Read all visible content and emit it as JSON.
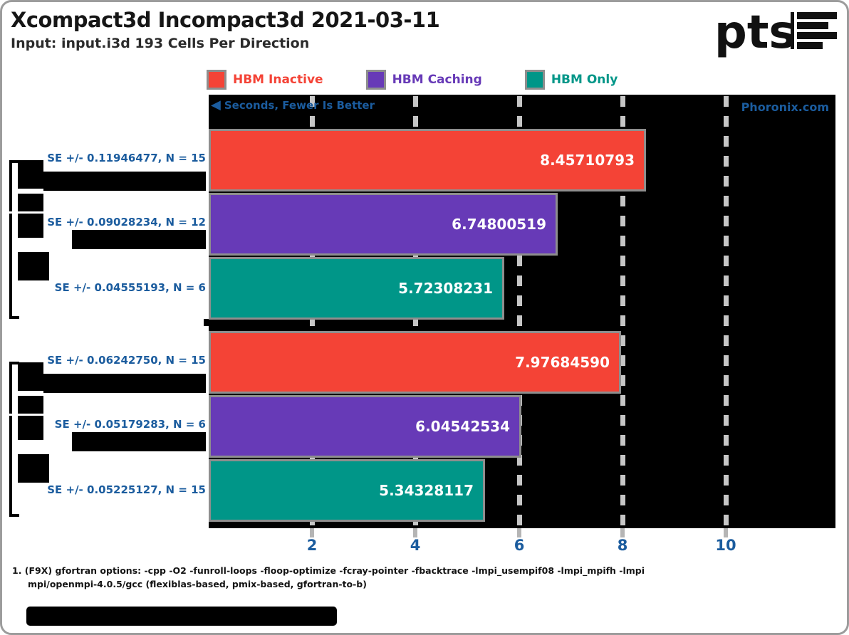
{
  "header": {
    "title": "Xcompact3d Incompact3d 2021-03-11",
    "subtitle": "Input: input.i3d 193 Cells Per Direction",
    "logo_text": "pts"
  },
  "chart_data": {
    "type": "bar",
    "orientation": "horizontal",
    "title": "Xcompact3d Incompact3d 2021-03-11",
    "subtitle": "Input: input.i3d 193 Cells Per Direction",
    "value_unit": "Seconds",
    "note": "Seconds, Fewer Is Better",
    "watermark": "Phoronix.com",
    "xlim": [
      0,
      12
    ],
    "xticks": [
      2,
      4,
      6,
      8,
      10
    ],
    "grid": "dashed-vertical",
    "legend_position": "top",
    "legend": [
      {
        "label": "HBM Inactive",
        "color": "#f44336"
      },
      {
        "label": "HBM Caching",
        "color": "#673ab7"
      },
      {
        "label": "HBM Only",
        "color": "#009688"
      }
    ],
    "bars": [
      {
        "group": 1,
        "series": "HBM Inactive",
        "value": 8.45710793,
        "label": "8.45710793",
        "se": "SE +/- 0.11946477, N = 15",
        "color": "#f44336",
        "identifier_redacted": true
      },
      {
        "group": 1,
        "series": "HBM Caching",
        "value": 6.74800519,
        "label": "6.74800519",
        "se": "SE +/- 0.09028234, N = 12",
        "color": "#673ab7",
        "identifier_redacted": true
      },
      {
        "group": 1,
        "series": "HBM Only",
        "value": 5.72308231,
        "label": "5.72308231",
        "se": "SE +/- 0.04555193, N = 6",
        "color": "#009688",
        "identifier_redacted": true
      },
      {
        "group": 2,
        "series": "HBM Inactive",
        "value": 7.9768459,
        "label": "7.97684590",
        "se": "SE +/- 0.06242750, N = 15",
        "color": "#f44336",
        "identifier_redacted": true
      },
      {
        "group": 2,
        "series": "HBM Caching",
        "value": 6.04542534,
        "label": "6.04542534",
        "se": "SE +/- 0.05179283, N = 6",
        "color": "#673ab7",
        "identifier_redacted": true
      },
      {
        "group": 2,
        "series": "HBM Only",
        "value": 5.34328117,
        "label": "5.34328117",
        "se": "SE +/- 0.05225127, N = 15",
        "color": "#009688",
        "identifier_redacted": true
      }
    ]
  },
  "footer": {
    "line1": "1. (F9X) gfortran options: -cpp -O2 -funroll-loops -floop-optimize -fcray-pointer -fbacktrace -lmpi_usempif08 -lmpi_mpifh -lmpi",
    "line2": "mpi/openmpi-4.0.5/gcc (flexiblas-based, pmix-based, gfortran-to-b)"
  },
  "colors": {
    "accent_blue": "#1b5c9e",
    "bar_border": "#8e8e8e",
    "plot_background": "#000000",
    "red": "#f44336",
    "purple": "#673ab7",
    "teal": "#009688"
  }
}
